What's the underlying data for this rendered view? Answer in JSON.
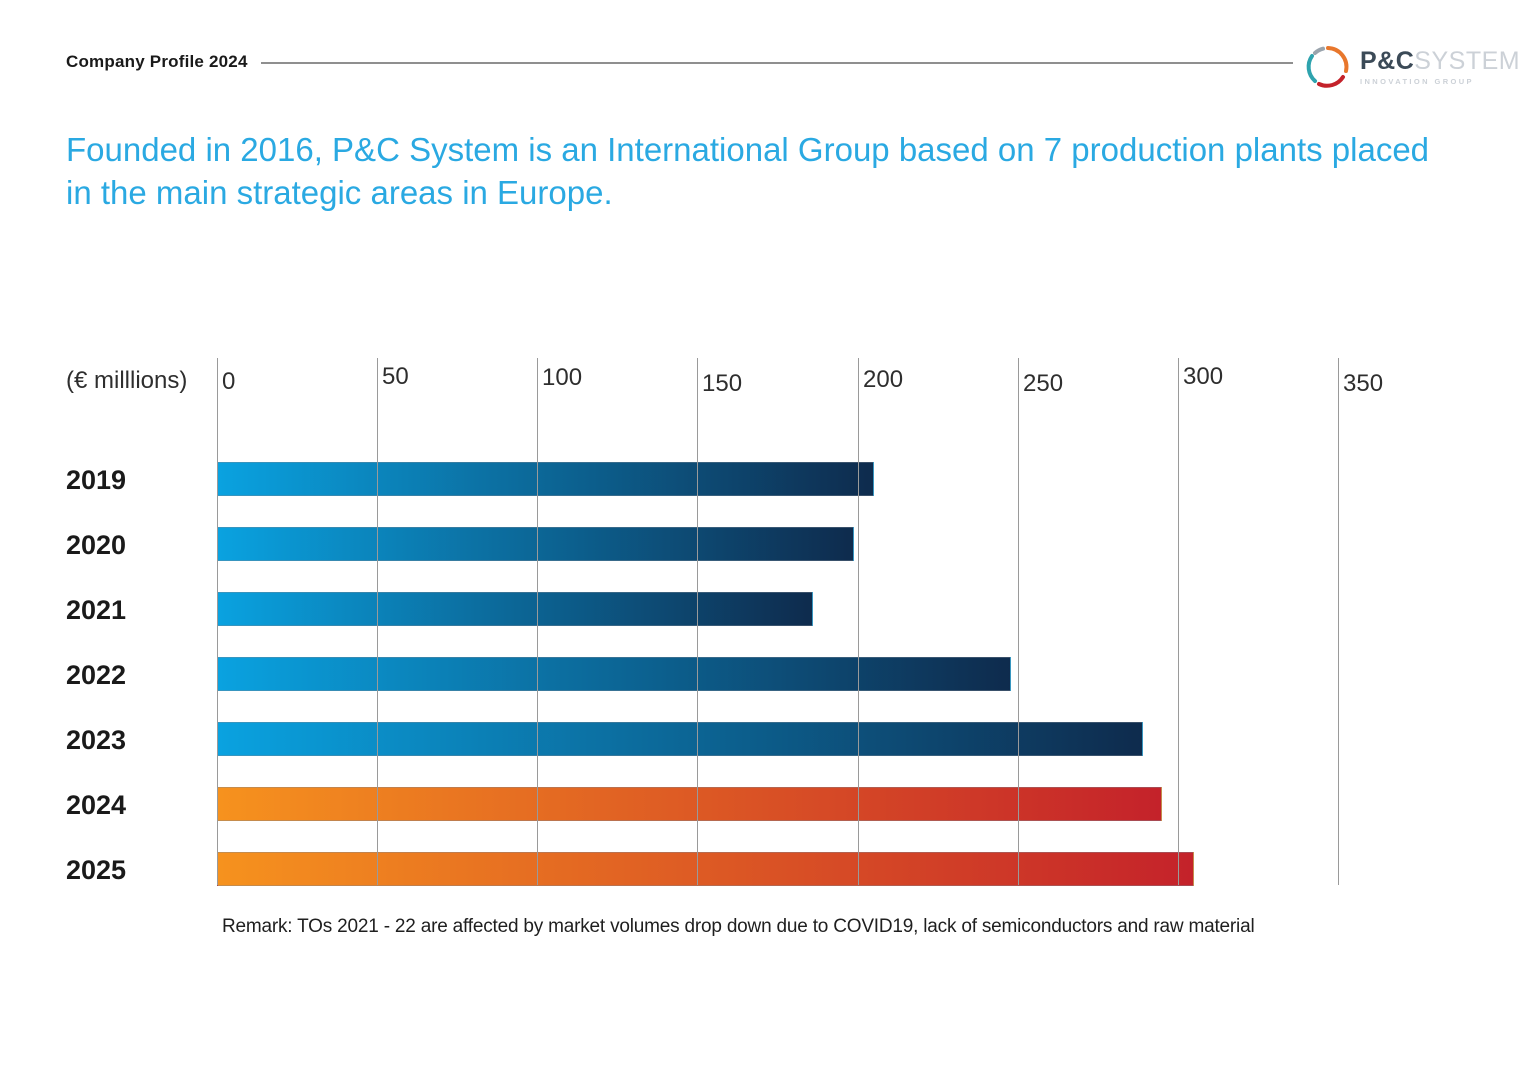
{
  "header": {
    "kicker": "Company Profile 2024"
  },
  "logo": {
    "name": "P&C",
    "suffix": "SYSTEM",
    "tagline": "INNOVATION GROUP"
  },
  "title": {
    "text": "Founded in 2016, P&C System is an International Group based on 7 production plants placed in the main strategic areas in Europe."
  },
  "chart_data": {
    "type": "bar",
    "orientation": "horizontal",
    "unit_label": "(€ milllions)",
    "categories": [
      "2019",
      "2020",
      "2021",
      "2022",
      "2023",
      "2024",
      "2025"
    ],
    "values": [
      205,
      199,
      186,
      248,
      289,
      295,
      305
    ],
    "xlim": [
      0,
      350
    ],
    "xticks": [
      0,
      50,
      100,
      150,
      200,
      250,
      300,
      350
    ],
    "grid": true,
    "legend": false,
    "bar_palettes": [
      "blue",
      "blue",
      "blue",
      "blue",
      "blue",
      "orange",
      "orange"
    ]
  },
  "remark": {
    "text": "Remark: TOs 2021 - 22 are affected by market volumes drop down due to COVID19, lack of semiconductors and raw material"
  },
  "colors": {
    "title_blue": "#2aa9e2",
    "bar_blue_start": "#0aa2e0",
    "bar_blue_end": "#0e2b4d",
    "bar_orange_start": "#f6921e",
    "bar_orange_end": "#c4222a",
    "gridline": "#9a9a9a",
    "header_rule": "#8f8f8f",
    "text_dark": "#1a1a1a",
    "logo_dark": "#3b4a57",
    "logo_gray": "#ccd1d7",
    "logo_swirl_orange": "#e8772c",
    "logo_swirl_teal": "#2ea3ae"
  }
}
